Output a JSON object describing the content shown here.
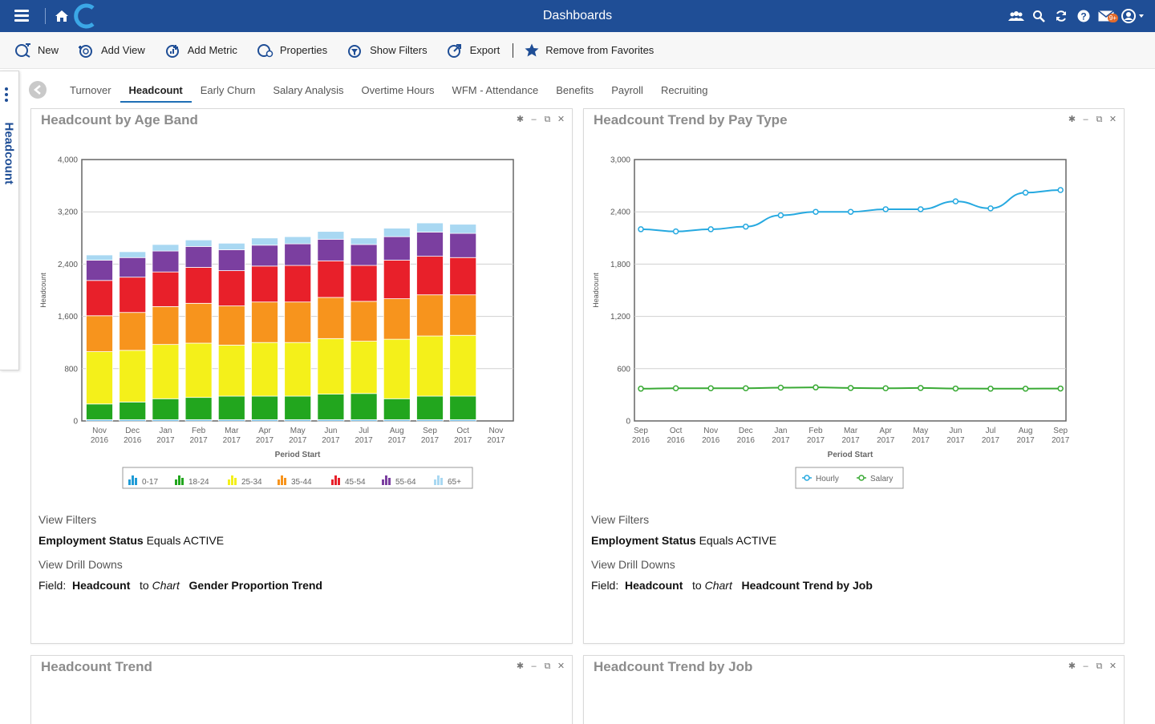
{
  "header": {
    "title": "Dashboards",
    "mail_badge": "9+"
  },
  "toolbar": {
    "items": [
      {
        "label": "New",
        "icon": "new-icon"
      },
      {
        "label": "Add View",
        "icon": "add-view-icon"
      },
      {
        "label": "Add Metric",
        "icon": "add-metric-icon"
      },
      {
        "label": "Properties",
        "icon": "properties-icon"
      },
      {
        "label": "Show Filters",
        "icon": "show-filters-icon"
      },
      {
        "label": "Export",
        "icon": "export-icon"
      }
    ],
    "favorite_label": "Remove from Favorites"
  },
  "sidebar": {
    "label": "Headcount"
  },
  "tabs": [
    {
      "label": "Turnover"
    },
    {
      "label": "Headcount",
      "active": true
    },
    {
      "label": "Early Churn"
    },
    {
      "label": "Salary Analysis"
    },
    {
      "label": "Overtime Hours"
    },
    {
      "label": "WFM - Attendance"
    },
    {
      "label": "Benefits"
    },
    {
      "label": "Payroll"
    },
    {
      "label": "Recruiting"
    }
  ],
  "panels": {
    "age_band": {
      "title": "Headcount by Age Band",
      "view_filters_label": "View Filters",
      "filter_field": "Employment Status",
      "filter_rest": "Equals ACTIVE",
      "drill_label": "View Drill Downs",
      "drill_field_label": "Field:",
      "drill_field": "Headcount",
      "drill_to": "to",
      "drill_chart_word": "Chart",
      "drill_target": "Gender Proportion Trend"
    },
    "pay_type": {
      "title": "Headcount Trend by Pay Type",
      "view_filters_label": "View Filters",
      "filter_field": "Employment Status",
      "filter_rest": "Equals ACTIVE",
      "drill_label": "View Drill Downs",
      "drill_field_label": "Field:",
      "drill_field": "Headcount",
      "drill_to": "to",
      "drill_chart_word": "Chart",
      "drill_target": "Headcount Trend by Job"
    },
    "trend": {
      "title": "Headcount Trend"
    },
    "by_job": {
      "title": "Headcount Trend by Job"
    }
  },
  "colors": {
    "header_bg": "#1f4e96",
    "age_0_17": "#1f9bd6",
    "age_18_24": "#22a61e",
    "age_25_34": "#f4f01a",
    "age_35_44": "#f7941d",
    "age_45_54": "#e8202a",
    "age_55_64": "#7b3fa0",
    "age_65_plus": "#a9d8f2",
    "hourly": "#26a9e0",
    "salary": "#3aaa35"
  },
  "chart_data": [
    {
      "type": "bar",
      "stacked": true,
      "xlabel": "Period Start",
      "ylabel": "Headcount",
      "ylim": [
        0,
        4000
      ],
      "yticks": [
        "0",
        "800",
        "1,600",
        "2,400",
        "3,200",
        "4,000"
      ],
      "categories": [
        [
          "Nov",
          "2016"
        ],
        [
          "Dec",
          "2016"
        ],
        [
          "Jan",
          "2017"
        ],
        [
          "Feb",
          "2017"
        ],
        [
          "Mar",
          "2017"
        ],
        [
          "Apr",
          "2017"
        ],
        [
          "May",
          "2017"
        ],
        [
          "Jun",
          "2017"
        ],
        [
          "Jul",
          "2017"
        ],
        [
          "Aug",
          "2017"
        ],
        [
          "Sep",
          "2017"
        ],
        [
          "Oct",
          "2017"
        ],
        [
          "Nov",
          "2017"
        ]
      ],
      "series": [
        {
          "name": "0-17",
          "values": [
            20,
            20,
            20,
            20,
            20,
            20,
            20,
            20,
            20,
            20,
            20,
            20,
            0
          ]
        },
        {
          "name": "18-24",
          "values": [
            240,
            270,
            320,
            340,
            360,
            360,
            360,
            390,
            400,
            320,
            360,
            360,
            0
          ]
        },
        {
          "name": "25-34",
          "values": [
            800,
            790,
            830,
            830,
            780,
            820,
            820,
            850,
            800,
            910,
            920,
            930,
            0
          ]
        },
        {
          "name": "35-44",
          "values": [
            550,
            580,
            580,
            610,
            600,
            620,
            620,
            630,
            610,
            620,
            630,
            620,
            0
          ]
        },
        {
          "name": "45-54",
          "values": [
            540,
            540,
            530,
            550,
            540,
            550,
            560,
            560,
            550,
            590,
            590,
            570,
            0
          ]
        },
        {
          "name": "55-64",
          "values": [
            310,
            300,
            320,
            320,
            320,
            320,
            330,
            330,
            320,
            360,
            370,
            370,
            0
          ]
        },
        {
          "name": "65+",
          "values": [
            80,
            90,
            100,
            100,
            100,
            110,
            110,
            120,
            100,
            130,
            140,
            140,
            0
          ]
        }
      ],
      "legend_position": "bottom"
    },
    {
      "type": "line",
      "xlabel": "Period Start",
      "ylabel": "Headcount",
      "ylim": [
        0,
        3000
      ],
      "yticks": [
        "0",
        "600",
        "1,200",
        "1,800",
        "2,400",
        "3,000"
      ],
      "categories": [
        [
          "Sep",
          "2016"
        ],
        [
          "Oct",
          "2016"
        ],
        [
          "Nov",
          "2016"
        ],
        [
          "Dec",
          "2016"
        ],
        [
          "Jan",
          "2017"
        ],
        [
          "Feb",
          "2017"
        ],
        [
          "Mar",
          "2017"
        ],
        [
          "Apr",
          "2017"
        ],
        [
          "May",
          "2017"
        ],
        [
          "Jun",
          "2017"
        ],
        [
          "Jul",
          "2017"
        ],
        [
          "Aug",
          "2017"
        ],
        [
          "Sep",
          "2017"
        ]
      ],
      "series": [
        {
          "name": "Hourly",
          "values": [
            2200,
            2175,
            2200,
            2230,
            2360,
            2400,
            2400,
            2430,
            2430,
            2520,
            2440,
            2620,
            2650
          ]
        },
        {
          "name": "Salary",
          "values": [
            370,
            375,
            375,
            375,
            382,
            385,
            378,
            375,
            378,
            372,
            370,
            370,
            372
          ]
        }
      ],
      "legend_position": "bottom"
    }
  ]
}
